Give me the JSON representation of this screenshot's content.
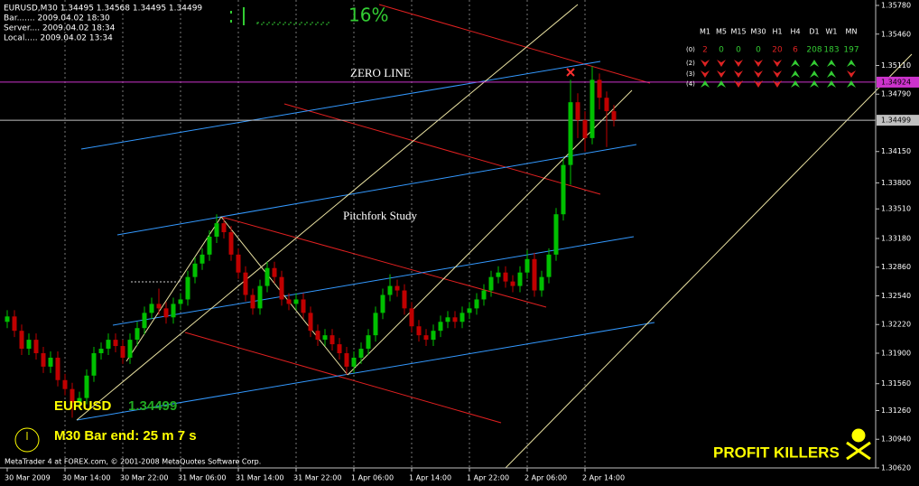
{
  "chart_data": {
    "type": "candlestick",
    "header": [
      "EURUSD,M30  1.34495 1.34568 1.34495 1.34499",
      "Bar....... 2009.04.02 18:30",
      "Server.... 2009.04.02 18:34",
      "Local..... 2009.04.02 13:34"
    ],
    "progress": "16%",
    "annotations": [
      "ZERO LINE",
      "Pitchfork Study"
    ],
    "symbol": "EURUSD",
    "price": "1.34499",
    "bar_end": "M30 Bar end: 25 m 7 s",
    "brand": "PROFIT KILLERS",
    "footer": "MetaTrader 4 at FOREX.com, © 2001-2008 MetaQuotes Software Corp.",
    "up_color": "#00c000",
    "down_color": "#c00000",
    "grid": true,
    "categories": [
      "30 Mar 2009",
      null,
      null,
      null,
      null,
      null,
      null,
      null,
      "30 Mar 14:00",
      null,
      null,
      null,
      null,
      null,
      null,
      null,
      "30 Mar 22:00",
      null,
      null,
      null,
      null,
      null,
      null,
      null,
      "31 Mar 06:00",
      null,
      null,
      null,
      null,
      null,
      null,
      null,
      "31 Mar 14:00",
      null,
      null,
      null,
      null,
      null,
      null,
      null,
      "31 Mar 22:00",
      null,
      null,
      null,
      null,
      null,
      null,
      null,
      "1 Apr 06:00",
      null,
      null,
      null,
      null,
      null,
      null,
      null,
      "1 Apr 14:00",
      null,
      null,
      null,
      null,
      null,
      null,
      null,
      "1 Apr 22:00",
      null,
      null,
      null,
      null,
      null,
      null,
      null,
      "2 Apr 06:00",
      null,
      null,
      null,
      null,
      null,
      null,
      null,
      "2 Apr 14:00",
      null,
      null,
      null,
      null
    ],
    "open": [
      1.3225,
      1.3231,
      1.3215,
      1.3195,
      1.3205,
      1.319,
      1.3175,
      1.3185,
      1.316,
      1.315,
      1.3135,
      1.314,
      1.3165,
      1.319,
      1.3195,
      1.3205,
      1.3198,
      1.3185,
      1.3205,
      1.3218,
      1.3235,
      1.3245,
      1.324,
      1.323,
      1.3245,
      1.325,
      1.3275,
      1.329,
      1.33,
      1.332,
      1.3335,
      1.3325,
      1.33,
      1.328,
      1.3255,
      1.324,
      1.3265,
      1.3285,
      1.3275,
      1.325,
      1.3245,
      1.325,
      1.3235,
      1.3215,
      1.3205,
      1.321,
      1.32,
      1.319,
      1.3175,
      1.3185,
      1.3195,
      1.321,
      1.3235,
      1.3255,
      1.3265,
      1.326,
      1.324,
      1.322,
      1.321,
      1.3205,
      1.3215,
      1.3225,
      1.323,
      1.3225,
      1.3235,
      1.324,
      1.325,
      1.326,
      1.3275,
      1.328,
      1.327,
      1.3265,
      1.328,
      1.3295,
      1.326,
      1.3275,
      1.33,
      1.3345,
      1.34,
      1.347,
      1.345,
      1.343,
      1.3495,
      1.3475,
      1.346
    ],
    "high": [
      1.3238,
      1.3238,
      1.3222,
      1.3212,
      1.3212,
      1.3197,
      1.3192,
      1.3192,
      1.3167,
      1.3157,
      1.3147,
      1.3172,
      1.3197,
      1.3202,
      1.3212,
      1.3212,
      1.3205,
      1.3212,
      1.3225,
      1.3242,
      1.3252,
      1.3262,
      1.3247,
      1.3252,
      1.3257,
      1.3282,
      1.3297,
      1.3307,
      1.3327,
      1.3345,
      1.3342,
      1.3332,
      1.3307,
      1.3287,
      1.3262,
      1.3272,
      1.3292,
      1.3292,
      1.3282,
      1.3257,
      1.3257,
      1.3257,
      1.3242,
      1.3222,
      1.3217,
      1.3217,
      1.3207,
      1.3197,
      1.3192,
      1.3202,
      1.3217,
      1.3242,
      1.3262,
      1.3278,
      1.3272,
      1.3267,
      1.3247,
      1.3227,
      1.3217,
      1.3222,
      1.3232,
      1.3237,
      1.3237,
      1.3242,
      1.3247,
      1.3257,
      1.3267,
      1.3282,
      1.3287,
      1.3287,
      1.3277,
      1.3287,
      1.3305,
      1.3302,
      1.3282,
      1.3307,
      1.3352,
      1.3407,
      1.3495,
      1.348,
      1.346,
      1.351,
      1.3502,
      1.3482,
      1.3467
    ],
    "low": [
      1.3218,
      1.3208,
      1.3188,
      1.3188,
      1.3183,
      1.3168,
      1.3168,
      1.3153,
      1.3143,
      1.3118,
      1.3128,
      1.3133,
      1.3158,
      1.3183,
      1.3188,
      1.3191,
      1.3178,
      1.3178,
      1.3198,
      1.3211,
      1.3228,
      1.3233,
      1.3223,
      1.3223,
      1.3238,
      1.3243,
      1.3268,
      1.3283,
      1.3293,
      1.3313,
      1.3318,
      1.3293,
      1.3273,
      1.3248,
      1.3233,
      1.3233,
      1.3258,
      1.3268,
      1.3243,
      1.3238,
      1.3238,
      1.3228,
      1.3208,
      1.3198,
      1.3198,
      1.3193,
      1.3183,
      1.3166,
      1.3168,
      1.3178,
      1.3188,
      1.3203,
      1.3228,
      1.3248,
      1.3253,
      1.3233,
      1.3213,
      1.3203,
      1.3198,
      1.3198,
      1.3208,
      1.3218,
      1.3218,
      1.3218,
      1.3228,
      1.3233,
      1.3243,
      1.3253,
      1.3268,
      1.3263,
      1.3258,
      1.3258,
      1.3273,
      1.3253,
      1.3253,
      1.3268,
      1.3293,
      1.3338,
      1.3378,
      1.343,
      1.3415,
      1.3423,
      1.3462,
      1.342,
      1.3443
    ],
    "close": [
      1.3231,
      1.3215,
      1.3195,
      1.3205,
      1.319,
      1.3175,
      1.3185,
      1.316,
      1.315,
      1.3135,
      1.314,
      1.3165,
      1.319,
      1.3195,
      1.3205,
      1.3198,
      1.3185,
      1.3205,
      1.3218,
      1.3235,
      1.3245,
      1.324,
      1.323,
      1.3245,
      1.325,
      1.3275,
      1.329,
      1.33,
      1.332,
      1.3335,
      1.3325,
      1.33,
      1.328,
      1.3255,
      1.324,
      1.3265,
      1.3285,
      1.3275,
      1.325,
      1.3245,
      1.325,
      1.3235,
      1.3215,
      1.3205,
      1.321,
      1.32,
      1.319,
      1.3175,
      1.3185,
      1.3195,
      1.321,
      1.3235,
      1.3255,
      1.3265,
      1.326,
      1.324,
      1.322,
      1.321,
      1.3205,
      1.3215,
      1.3225,
      1.323,
      1.3225,
      1.3235,
      1.324,
      1.325,
      1.326,
      1.3275,
      1.328,
      1.327,
      1.3265,
      1.328,
      1.3295,
      1.326,
      1.3275,
      1.33,
      1.3345,
      1.34,
      1.347,
      1.345,
      1.343,
      1.3495,
      1.3475,
      1.346,
      1.345
    ],
    "ylim": [
      1.3062,
      1.3578
    ],
    "yticks": [
      {
        "value": 1.3578,
        "label": "1.35780"
      },
      {
        "value": 1.3546,
        "label": "1.35460"
      },
      {
        "value": 1.3511,
        "label": "1.35110"
      },
      {
        "value": 1.3479,
        "label": "1.34790"
      },
      {
        "value": 1.3415,
        "label": "1.34150"
      },
      {
        "value": 1.338,
        "label": "1.33800"
      },
      {
        "value": 1.3351,
        "label": "1.33510"
      },
      {
        "value": 1.3318,
        "label": "1.33180"
      },
      {
        "value": 1.3286,
        "label": "1.32860"
      },
      {
        "value": 1.3254,
        "label": "1.32540"
      },
      {
        "value": 1.3222,
        "label": "1.32220"
      },
      {
        "value": 1.319,
        "label": "1.31900"
      },
      {
        "value": 1.3156,
        "label": "1.31560"
      },
      {
        "value": 1.3126,
        "label": "1.31260"
      },
      {
        "value": 1.3094,
        "label": "1.30940"
      },
      {
        "value": 1.3062,
        "label": "1.30620"
      }
    ],
    "hlines": [
      {
        "value": 1.34924,
        "label": "1.34924",
        "color": "#cc33cc"
      },
      {
        "value": 1.34499,
        "label": "1.34499",
        "color": "#c0c0c0"
      }
    ],
    "panel": {
      "columns": [
        "M1",
        "M5",
        "M15",
        "M30",
        "H1",
        "H4",
        "D1",
        "W1",
        "MN"
      ],
      "up_color": "#33cc33",
      "down_color": "#dd2222",
      "rows": [
        {
          "label": "(0)",
          "values": [
            2,
            0,
            0,
            0,
            20,
            6,
            208,
            183,
            197
          ],
          "colors": [
            "#dd2222",
            "#33cc33",
            "#33cc33",
            "#33cc33",
            "#dd2222",
            "#dd2222",
            "#33cc33",
            "#33cc33",
            "#33cc33"
          ]
        },
        {
          "label": "(2)",
          "signals": [
            "down",
            "down",
            "down",
            "down",
            "down",
            "up",
            "up",
            "up",
            "up"
          ]
        },
        {
          "label": "(3)",
          "signals": [
            "down",
            "down",
            "down",
            "down",
            "down",
            "up",
            "up",
            "up",
            "down"
          ]
        },
        {
          "label": "(4)",
          "signals": [
            "up",
            "up",
            "down",
            "down",
            "down",
            "up",
            "up",
            "up",
            "up"
          ]
        }
      ]
    }
  }
}
